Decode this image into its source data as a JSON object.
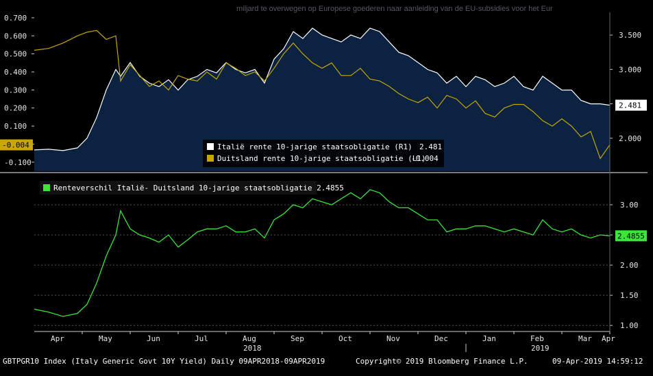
{
  "background_article": {
    "text": "miljard te overwegen op Europese goederen naar aanleiding van de EU-subsidies voor het Eur"
  },
  "footer": {
    "left": "GBTPGR10 Index (Italy Generic Govt 10Y Yield)  Daily 09APR2018-09APR2019",
    "center": "Copyright© 2019 Bloomberg Finance L.P.",
    "right": "09-Apr-2019 14:59:12"
  },
  "colors": {
    "italy": "#ffffff",
    "italy_fill": "#0b2240",
    "germany": "#c8a800",
    "spread": "#39e639",
    "background": "#000000",
    "panel_divider": "#7a7a7a"
  },
  "chart_data": [
    {
      "type": "line",
      "panel": "top",
      "x_axis": "Apr-2018..Apr-2019 (months)",
      "left_axis": {
        "ticks": [
          0.7,
          0.6,
          0.5,
          0.4,
          0.3,
          0.2,
          0.1,
          0.0,
          -0.1
        ],
        "ylim": [
          -0.15,
          0.73
        ],
        "tick_labels": [
          "0.700",
          "0.600",
          "0.500",
          "0.400",
          "0.300",
          "0.200",
          "0.100",
          "",
          "-0.100"
        ]
      },
      "right_axis": {
        "ticks": [
          3.5,
          3.0,
          2.5,
          2.0
        ],
        "ylim": [
          1.52,
          3.83
        ],
        "tick_labels": [
          "3.500",
          "3.000",
          "2.500",
          "2.000"
        ]
      },
      "last_value_tags": {
        "right": "2.481",
        "left": "-0.004"
      },
      "series": [
        {
          "name": "Italië rente 10-jarige staatsobligatie  (R1)",
          "last": "2.481",
          "axis": "right",
          "style": "area",
          "x": [
            0,
            0.3,
            0.6,
            0.9,
            1.1,
            1.3,
            1.5,
            1.7,
            1.8,
            2.0,
            2.2,
            2.4,
            2.6,
            2.8,
            3.0,
            3.2,
            3.4,
            3.6,
            3.8,
            4.0,
            4.2,
            4.4,
            4.6,
            4.8,
            5.0,
            5.2,
            5.4,
            5.6,
            5.8,
            6.0,
            6.2,
            6.4,
            6.6,
            6.8,
            7.0,
            7.2,
            7.4,
            7.6,
            7.8,
            8.0,
            8.2,
            8.4,
            8.6,
            8.8,
            9.0,
            9.2,
            9.4,
            9.6,
            9.8,
            10.0,
            10.2,
            10.4,
            10.6,
            10.8,
            11.0,
            11.2,
            11.4,
            11.6,
            11.8,
            12.0
          ],
          "values": [
            1.83,
            1.84,
            1.82,
            1.86,
            2.0,
            2.3,
            2.7,
            3.0,
            2.9,
            3.1,
            2.9,
            2.8,
            2.75,
            2.85,
            2.7,
            2.85,
            2.9,
            3.0,
            2.95,
            3.1,
            3.0,
            2.95,
            3.0,
            2.8,
            3.15,
            3.3,
            3.55,
            3.45,
            3.6,
            3.5,
            3.45,
            3.4,
            3.5,
            3.45,
            3.6,
            3.55,
            3.4,
            3.25,
            3.2,
            3.1,
            3.0,
            2.95,
            2.8,
            2.9,
            2.75,
            2.9,
            2.85,
            2.75,
            2.8,
            2.9,
            2.75,
            2.7,
            2.9,
            2.8,
            2.7,
            2.7,
            2.55,
            2.5,
            2.5,
            2.48
          ]
        },
        {
          "name": "Duitsland rente 10-jarige staatsobligatie (L1)",
          "last": "-0.004",
          "axis": "left",
          "style": "line",
          "x": [
            0,
            0.3,
            0.6,
            0.9,
            1.1,
            1.3,
            1.5,
            1.7,
            1.8,
            2.0,
            2.2,
            2.4,
            2.6,
            2.8,
            3.0,
            3.2,
            3.4,
            3.6,
            3.8,
            4.0,
            4.2,
            4.4,
            4.6,
            4.8,
            5.0,
            5.2,
            5.4,
            5.6,
            5.8,
            6.0,
            6.2,
            6.4,
            6.6,
            6.8,
            7.0,
            7.2,
            7.4,
            7.6,
            7.8,
            8.0,
            8.2,
            8.4,
            8.6,
            8.8,
            9.0,
            9.2,
            9.4,
            9.6,
            9.8,
            10.0,
            10.2,
            10.4,
            10.6,
            10.8,
            11.0,
            11.2,
            11.4,
            11.6,
            11.8,
            12.0
          ],
          "values": [
            0.52,
            0.53,
            0.56,
            0.6,
            0.62,
            0.63,
            0.58,
            0.6,
            0.35,
            0.44,
            0.38,
            0.32,
            0.35,
            0.3,
            0.38,
            0.36,
            0.35,
            0.4,
            0.36,
            0.45,
            0.42,
            0.38,
            0.4,
            0.35,
            0.42,
            0.5,
            0.56,
            0.5,
            0.45,
            0.42,
            0.45,
            0.38,
            0.38,
            0.42,
            0.36,
            0.35,
            0.32,
            0.28,
            0.25,
            0.23,
            0.26,
            0.2,
            0.27,
            0.25,
            0.2,
            0.24,
            0.17,
            0.15,
            0.2,
            0.22,
            0.22,
            0.18,
            0.13,
            0.1,
            0.14,
            0.1,
            0.04,
            0.07,
            -0.08,
            -0.004
          ]
        }
      ]
    },
    {
      "type": "line",
      "panel": "bottom",
      "title": "Renteverschil Italië- Duitsland 10-jarige staatsobligatie 2.4855",
      "x_axis": {
        "months": [
          "Apr",
          "May",
          "Jun",
          "Jul",
          "Aug",
          "Sep",
          "Oct",
          "Nov",
          "Dec",
          "Jan",
          "Feb",
          "Mar",
          "Apr"
        ],
        "years": [
          "2018",
          "2019"
        ]
      },
      "right_axis": {
        "ticks": [
          3.0,
          2.5,
          2.0,
          1.5,
          1.0
        ],
        "ylim": [
          0.9,
          3.42
        ],
        "tick_labels": [
          "3.00",
          "2.50",
          "2.00",
          "1.50",
          "1.00"
        ]
      },
      "last_value_tags": {
        "right": "2.4855"
      },
      "series": [
        {
          "name": "Renteverschil Italië- Duitsland 10-jarige staatsobligatie",
          "last": "2.4855",
          "axis": "right",
          "x": [
            0,
            0.3,
            0.6,
            0.9,
            1.1,
            1.3,
            1.5,
            1.7,
            1.8,
            2.0,
            2.2,
            2.4,
            2.6,
            2.8,
            3.0,
            3.2,
            3.4,
            3.6,
            3.8,
            4.0,
            4.2,
            4.4,
            4.6,
            4.8,
            5.0,
            5.2,
            5.4,
            5.6,
            5.8,
            6.0,
            6.2,
            6.4,
            6.6,
            6.8,
            7.0,
            7.2,
            7.4,
            7.6,
            7.8,
            8.0,
            8.2,
            8.4,
            8.6,
            8.8,
            9.0,
            9.2,
            9.4,
            9.6,
            9.8,
            10.0,
            10.2,
            10.4,
            10.6,
            10.8,
            11.0,
            11.2,
            11.4,
            11.6,
            11.8,
            12.0
          ],
          "values": [
            1.27,
            1.22,
            1.15,
            1.2,
            1.35,
            1.7,
            2.15,
            2.5,
            2.9,
            2.6,
            2.5,
            2.45,
            2.38,
            2.5,
            2.3,
            2.42,
            2.55,
            2.6,
            2.6,
            2.65,
            2.55,
            2.55,
            2.6,
            2.45,
            2.75,
            2.85,
            3.0,
            2.95,
            3.1,
            3.05,
            3.0,
            3.1,
            3.2,
            3.1,
            3.25,
            3.2,
            3.05,
            2.95,
            2.95,
            2.85,
            2.75,
            2.75,
            2.55,
            2.6,
            2.6,
            2.65,
            2.65,
            2.6,
            2.55,
            2.6,
            2.55,
            2.5,
            2.75,
            2.6,
            2.55,
            2.6,
            2.5,
            2.45,
            2.5,
            2.4855
          ]
        }
      ]
    }
  ]
}
